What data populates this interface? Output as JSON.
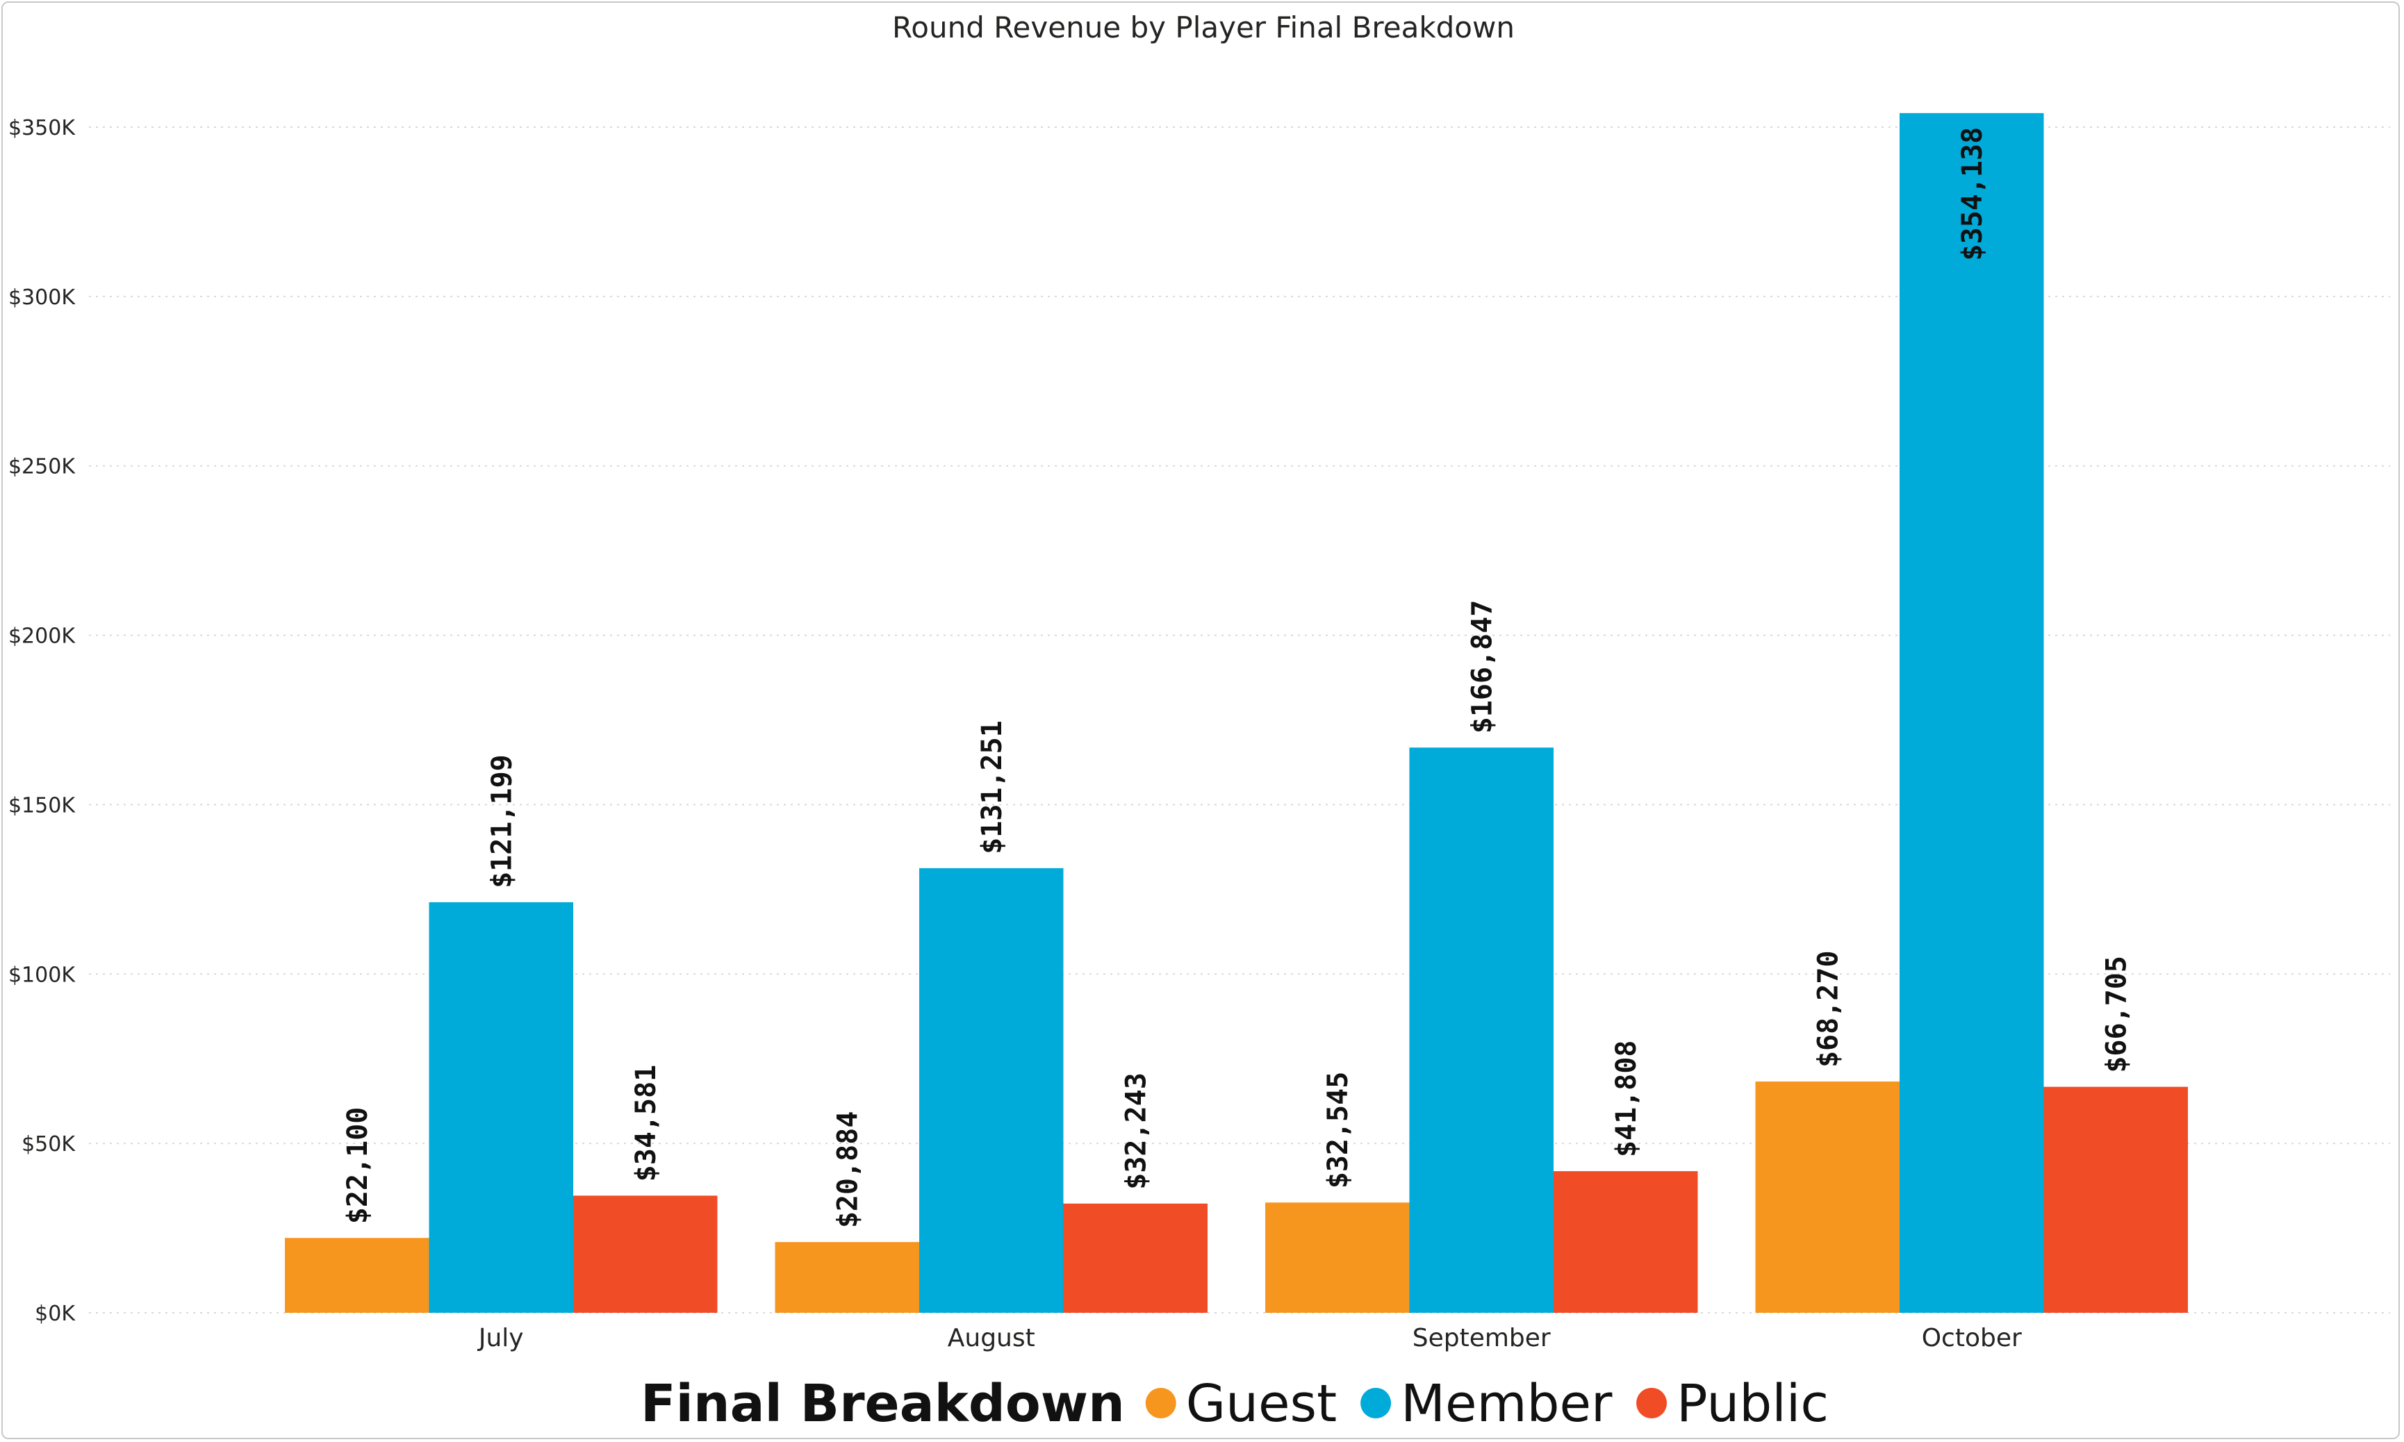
{
  "chart_data": {
    "type": "bar",
    "title": "Round Revenue by Player Final Breakdown",
    "categories": [
      "July",
      "August",
      "September",
      "October"
    ],
    "series": [
      {
        "name": "Guest",
        "color": "#F7961F",
        "values": [
          22100,
          20884,
          32545,
          68270
        ],
        "labels": [
          "$22,100",
          "$20,884",
          "$32,545",
          "$68,270"
        ]
      },
      {
        "name": "Member",
        "color": "#00AAD9",
        "values": [
          121199,
          131251,
          166847,
          354138
        ],
        "labels": [
          "$121,199",
          "$131,251",
          "$166,847",
          "$354,138"
        ]
      },
      {
        "name": "Public",
        "color": "#F04C25",
        "values": [
          34581,
          32243,
          41808,
          66705
        ],
        "labels": [
          "$34,581",
          "$32,243",
          "$41,808",
          "$66,705"
        ]
      }
    ],
    "ylim": [
      0,
      350000
    ],
    "yticks": [
      0,
      50000,
      100000,
      150000,
      200000,
      250000,
      300000,
      350000
    ],
    "ytick_labels": [
      "$0K",
      "$50K",
      "$100K",
      "$150K",
      "$200K",
      "$250K",
      "$300K",
      "$350K"
    ],
    "grid": true,
    "legend": {
      "title": "Final Breakdown",
      "position": "bottom"
    }
  }
}
